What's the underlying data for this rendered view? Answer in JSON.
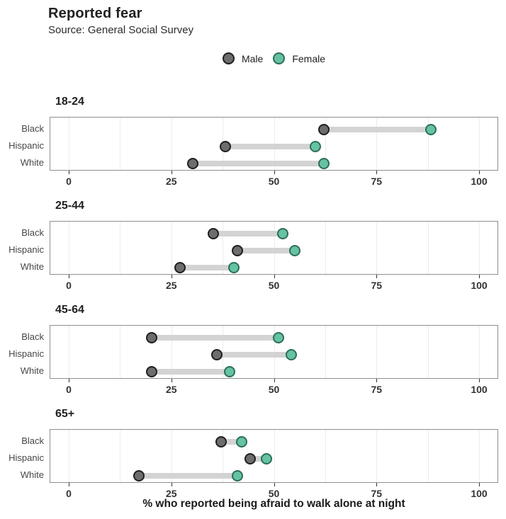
{
  "header": {
    "title": "Reported fear",
    "subtitle": "Source: General Social Survey"
  },
  "legend": {
    "items": [
      {
        "label": "Male",
        "fill": "#6d6d6d",
        "stroke": "#1f1f1f"
      },
      {
        "label": "Female",
        "fill": "#66c2a5",
        "stroke": "#2c6e58"
      }
    ]
  },
  "chart_data": {
    "type": "dumbbell",
    "title": "Reported fear",
    "subtitle": "Source: General Social Survey",
    "xlabel": "% who reported being afraid to walk alone at night",
    "x_ticks": [
      0,
      25,
      50,
      75,
      100
    ],
    "x_gridlines": [
      0,
      12.5,
      25,
      37.5,
      50,
      62.5,
      75,
      87.5,
      100
    ],
    "xlim": [
      -4.7,
      104.7
    ],
    "grid": "vertical-only",
    "legend_position": "top-center",
    "categories": [
      "Black",
      "Hispanic",
      "White"
    ],
    "series_names": [
      "Male",
      "Female"
    ],
    "colors": {
      "male_fill": "#6d6d6d",
      "male_stroke": "#1f1f1f",
      "female_fill": "#66c2a5",
      "female_stroke": "#2c6e58",
      "connector_bar": "#d3d3d3"
    },
    "facets": [
      {
        "label": "18-24",
        "rows": [
          {
            "category": "Black",
            "male": 62,
            "female": 88
          },
          {
            "category": "Hispanic",
            "male": 38,
            "female": 60
          },
          {
            "category": "White",
            "male": 30,
            "female": 62
          }
        ]
      },
      {
        "label": "25-44",
        "rows": [
          {
            "category": "Black",
            "male": 35,
            "female": 52
          },
          {
            "category": "Hispanic",
            "male": 41,
            "female": 55
          },
          {
            "category": "White",
            "male": 27,
            "female": 40
          }
        ]
      },
      {
        "label": "45-64",
        "rows": [
          {
            "category": "Black",
            "male": 20,
            "female": 51
          },
          {
            "category": "Hispanic",
            "male": 36,
            "female": 54
          },
          {
            "category": "White",
            "male": 20,
            "female": 39
          }
        ]
      },
      {
        "label": "65+",
        "rows": [
          {
            "category": "Black",
            "male": 37,
            "female": 42
          },
          {
            "category": "Hispanic",
            "male": 44,
            "female": 48
          },
          {
            "category": "White",
            "male": 17,
            "female": 41
          }
        ]
      }
    ]
  }
}
